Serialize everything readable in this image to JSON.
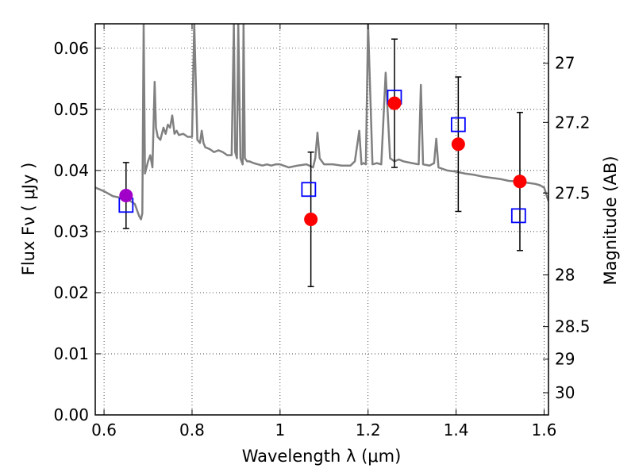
{
  "chart_data": {
    "type": "scatter",
    "xlabel": "Wavelength  λ (μm)",
    "ylabel": "Flux  Fν  ( μJy )",
    "y2label": "Magnitude (AB)",
    "xlim": [
      0.58,
      1.61
    ],
    "ylim": [
      0.0,
      0.064
    ],
    "grid": true,
    "x_ticks": [
      0.6,
      0.8,
      1.0,
      1.2,
      1.4,
      1.6
    ],
    "x_tick_labels": [
      "0.6",
      "0.8",
      "1",
      "1.2",
      "1.4",
      "1.6"
    ],
    "y_ticks": [
      0.0,
      0.01,
      0.02,
      0.03,
      0.04,
      0.05,
      0.06
    ],
    "y_tick_labels": [
      "0.00",
      "0.01",
      "0.02",
      "0.03",
      "0.04",
      "0.05",
      "0.06"
    ],
    "y2_ticks": [
      27,
      27.2,
      27.5,
      28,
      28.5,
      29,
      30
    ],
    "y2_tick_labels": [
      "27",
      "27.2",
      "27.5",
      "28",
      "28.5",
      "29",
      "30"
    ],
    "colors": {
      "model": "#808080",
      "observed": "#ff0000",
      "observed_first": "#a000c8",
      "model_photometry": "#0000ff",
      "errorbar": "#000000"
    },
    "observed": {
      "x": [
        0.65,
        1.07,
        1.26,
        1.405,
        1.545
      ],
      "y": [
        0.0359,
        0.032,
        0.051,
        0.0443,
        0.0382
      ],
      "yerr": [
        0.0054,
        0.011,
        0.0105,
        0.011,
        0.0113
      ]
    },
    "model_photometry": {
      "x": [
        0.65,
        1.065,
        1.26,
        1.405,
        1.542
      ],
      "y": [
        0.0343,
        0.0369,
        0.052,
        0.0475,
        0.0326
      ]
    },
    "model_spectrum": {
      "x": [
        0.58,
        0.6,
        0.62,
        0.64,
        0.66,
        0.67,
        0.68,
        0.684,
        0.687,
        0.69,
        0.693,
        0.7,
        0.705,
        0.71,
        0.715,
        0.718,
        0.722,
        0.728,
        0.735,
        0.74,
        0.745,
        0.75,
        0.755,
        0.76,
        0.765,
        0.77,
        0.78,
        0.79,
        0.8,
        0.805,
        0.812,
        0.818,
        0.822,
        0.826,
        0.83,
        0.84,
        0.85,
        0.86,
        0.87,
        0.88,
        0.89,
        0.895,
        0.898,
        0.902,
        0.905,
        0.91,
        0.915,
        0.917,
        0.92,
        0.925,
        0.93,
        0.94,
        0.95,
        0.96,
        0.97,
        0.98,
        0.99,
        1.0,
        1.02,
        1.04,
        1.06,
        1.075,
        1.08,
        1.085,
        1.09,
        1.1,
        1.12,
        1.14,
        1.16,
        1.17,
        1.18,
        1.185,
        1.19,
        1.195,
        1.2,
        1.21,
        1.22,
        1.23,
        1.24,
        1.25,
        1.26,
        1.27,
        1.28,
        1.3,
        1.315,
        1.32,
        1.325,
        1.34,
        1.35,
        1.355,
        1.36,
        1.38,
        1.4,
        1.42,
        1.44,
        1.46,
        1.48,
        1.5,
        1.52,
        1.54,
        1.56,
        1.58,
        1.59,
        1.6,
        1.61
      ],
      "y": [
        0.0372,
        0.0366,
        0.0358,
        0.0355,
        0.035,
        0.0345,
        0.0325,
        0.032,
        0.033,
        0.064,
        0.0395,
        0.0415,
        0.0425,
        0.0405,
        0.0545,
        0.047,
        0.0455,
        0.045,
        0.047,
        0.046,
        0.0475,
        0.047,
        0.049,
        0.046,
        0.0465,
        0.0458,
        0.046,
        0.0455,
        0.0455,
        0.064,
        0.045,
        0.0445,
        0.0465,
        0.0445,
        0.0438,
        0.0435,
        0.043,
        0.0433,
        0.043,
        0.0425,
        0.0425,
        0.064,
        0.043,
        0.042,
        0.064,
        0.042,
        0.041,
        0.064,
        0.042,
        0.0415,
        0.0415,
        0.0412,
        0.041,
        0.0408,
        0.041,
        0.0408,
        0.041,
        0.041,
        0.0405,
        0.0408,
        0.041,
        0.0405,
        0.042,
        0.0462,
        0.042,
        0.041,
        0.041,
        0.0408,
        0.0408,
        0.0415,
        0.0465,
        0.041,
        0.0412,
        0.041,
        0.064,
        0.041,
        0.0412,
        0.041,
        0.056,
        0.042,
        0.0415,
        0.0418,
        0.0415,
        0.0412,
        0.041,
        0.054,
        0.041,
        0.0408,
        0.0412,
        0.0452,
        0.0405,
        0.04,
        0.0398,
        0.0395,
        0.0393,
        0.039,
        0.0388,
        0.0386,
        0.0383,
        0.0382,
        0.038,
        0.0378,
        0.0376,
        0.0372,
        0.035
      ]
    }
  }
}
